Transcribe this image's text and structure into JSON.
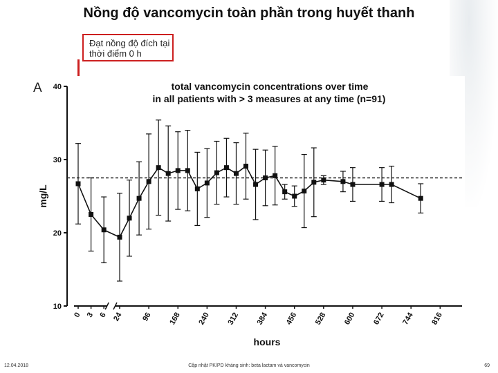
{
  "slide": {
    "title": "Nồng độ vancomycin toàn phần trong huyết thanh",
    "callout": "Đạt nồng độ đích tại thời điểm 0 h",
    "footer_date": "12.04.2018",
    "footer_center": "Cập nhật PK/PD kháng sinh: beta lactam và vancomycin",
    "page_number": "69"
  },
  "colors": {
    "callout_border": "#cc1f1f",
    "series": "#111111",
    "target_line": "#222222"
  },
  "chart_data": {
    "type": "line",
    "panel_label": "A",
    "title": "total vancomycin concentrations over time",
    "subtitle": "in all patients with > 3 measures at any time (n=91)",
    "xlabel": "hours",
    "ylabel": "mg/L",
    "ylim": [
      10,
      40
    ],
    "y_ticks": [
      10,
      20,
      30,
      40
    ],
    "x_tick_labels": [
      "0",
      "3",
      "6",
      "24",
      "96",
      "168",
      "240",
      "312",
      "384",
      "456",
      "528",
      "600",
      "672",
      "744",
      "816"
    ],
    "x_tick_values": [
      0,
      3,
      6,
      24,
      96,
      168,
      240,
      312,
      384,
      456,
      528,
      600,
      672,
      744,
      816
    ],
    "axis_break_between": [
      6,
      24
    ],
    "grid": false,
    "reference_line": {
      "y": 27.5,
      "style": "dashed"
    },
    "series": [
      {
        "marker": "square",
        "points": [
          {
            "x": 0,
            "y": 26.7,
            "err": 5.5
          },
          {
            "x": 3,
            "y": 22.5,
            "err": 5.0
          },
          {
            "x": 6,
            "y": 20.4,
            "err": 4.5
          },
          {
            "x": 24,
            "y": 19.4,
            "err": 6.0
          },
          {
            "x": 48,
            "y": 22.0,
            "err": 5.2
          },
          {
            "x": 72,
            "y": 24.7,
            "err": 5.0
          },
          {
            "x": 96,
            "y": 27.0,
            "err": 6.5
          },
          {
            "x": 120,
            "y": 28.9,
            "err": 6.5
          },
          {
            "x": 144,
            "y": 28.1,
            "err": 6.5
          },
          {
            "x": 168,
            "y": 28.5,
            "err": 5.3
          },
          {
            "x": 192,
            "y": 28.5,
            "err": 5.5
          },
          {
            "x": 216,
            "y": 26.0,
            "err": 5.0
          },
          {
            "x": 240,
            "y": 26.8,
            "err": 4.7
          },
          {
            "x": 264,
            "y": 28.2,
            "err": 4.3
          },
          {
            "x": 288,
            "y": 28.9,
            "err": 4.0
          },
          {
            "x": 312,
            "y": 28.1,
            "err": 4.2
          },
          {
            "x": 336,
            "y": 29.1,
            "err": 4.5
          },
          {
            "x": 360,
            "y": 26.6,
            "err": 4.8
          },
          {
            "x": 384,
            "y": 27.5,
            "err": 3.8
          },
          {
            "x": 408,
            "y": 27.8,
            "err": 4.0
          },
          {
            "x": 432,
            "y": 25.6,
            "err": 1.0
          },
          {
            "x": 456,
            "y": 25.0,
            "err": 1.4
          },
          {
            "x": 480,
            "y": 25.7,
            "err": 5.0
          },
          {
            "x": 504,
            "y": 26.9,
            "err": 4.7
          },
          {
            "x": 528,
            "y": 27.2,
            "err": 0.6
          },
          {
            "x": 576,
            "y": 27.0,
            "err": 1.4
          },
          {
            "x": 600,
            "y": 26.6,
            "err": 2.3
          },
          {
            "x": 672,
            "y": 26.6,
            "err": 2.3
          },
          {
            "x": 696,
            "y": 26.6,
            "err": 2.5
          },
          {
            "x": 768,
            "y": 24.7,
            "err": 2.0
          }
        ]
      }
    ]
  }
}
